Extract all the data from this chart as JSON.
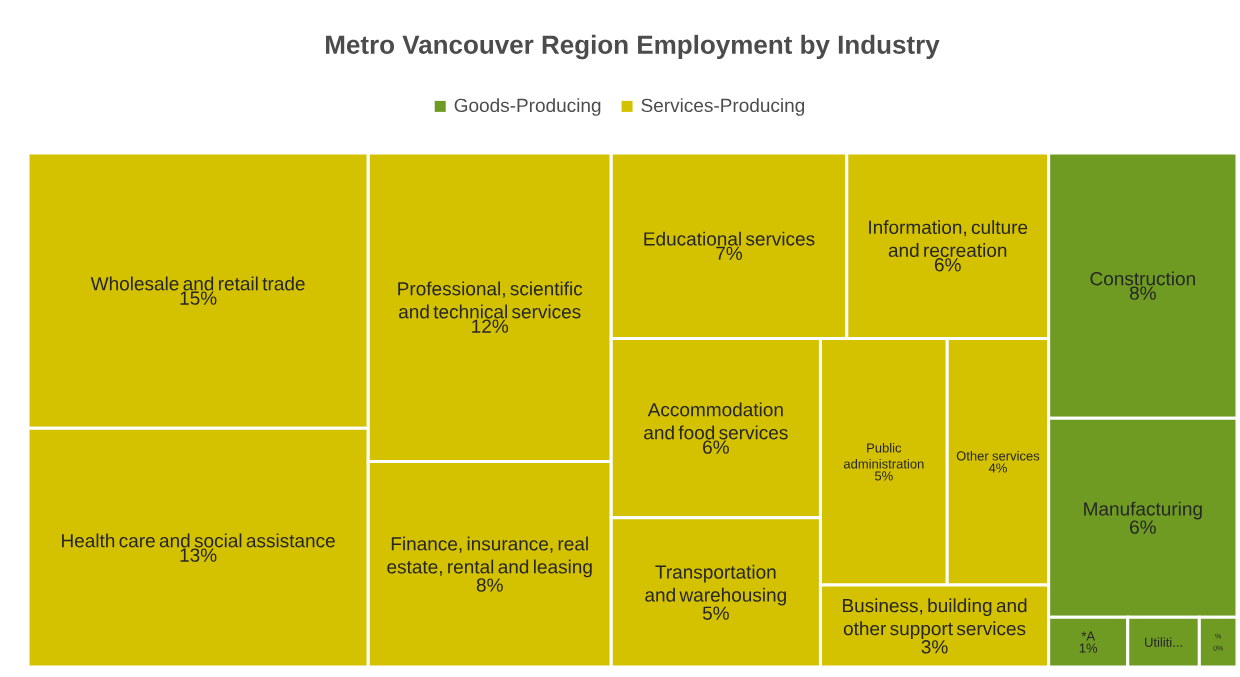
{
  "chart_data": {
    "type": "other",
    "title": "Metro Vancouver Region Employment by Industry",
    "legend": "top",
    "categories": [
      "Wholesale and retail trade",
      "Health care and social assistance",
      "Professional, scientific and technical services",
      "Finance, insurance, real estate, rental and leasing",
      "Educational services",
      "Information, culture and recreation",
      "Accommodation and food services",
      "Transportation and warehousing",
      "Public administration",
      "Other services",
      "Business, building and other support services",
      "Construction",
      "Manufacturing",
      "*A",
      "Utiliti...",
      "%"
    ],
    "series": [
      {
        "name": "Goods-Producing",
        "color": "#6f9b22",
        "values": [
          null,
          null,
          null,
          null,
          null,
          null,
          null,
          null,
          null,
          null,
          null,
          8,
          6,
          1,
          null,
          0
        ],
        "value_labels": [
          null,
          null,
          null,
          null,
          null,
          null,
          null,
          null,
          null,
          null,
          null,
          "8%",
          "6%",
          "1%",
          null,
          "0%"
        ]
      },
      {
        "name": "Services-Producing",
        "color": "#d4c200",
        "values": [
          15,
          13,
          12,
          8,
          7,
          6,
          6,
          5,
          5,
          4,
          3,
          null,
          null,
          null,
          null,
          null
        ],
        "value_labels": [
          "15%",
          "13%",
          "12%",
          "8%",
          "7%",
          "6%",
          "6%",
          "5%",
          "5%",
          "4%",
          "3%",
          null,
          null,
          null,
          null,
          null
        ]
      }
    ]
  }
}
